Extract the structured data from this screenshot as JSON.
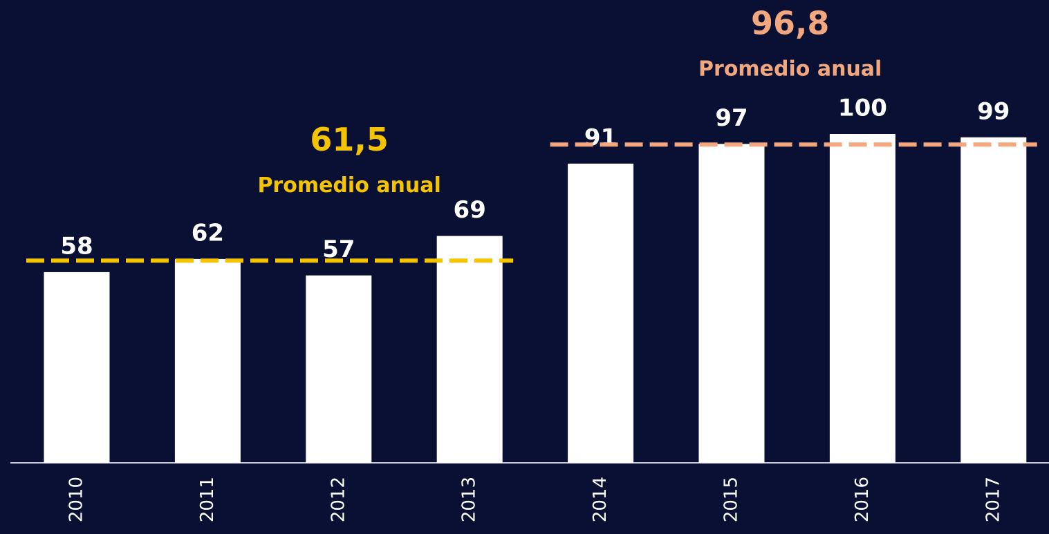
{
  "chart_data": {
    "type": "bar",
    "bar_color": "#ffffff",
    "groups": [
      {
        "categories": [
          "2010",
          "2011",
          "2012",
          "2013"
        ],
        "values": [
          58,
          62,
          57,
          69
        ],
        "average": {
          "value": 61.5,
          "label": "61,5",
          "text": "Promedio anual",
          "color": "#f5c400"
        }
      },
      {
        "categories": [
          "2014",
          "2015",
          "2016",
          "2017"
        ],
        "values": [
          91,
          97,
          100,
          99
        ],
        "average": {
          "value": 96.8,
          "label": "96,8",
          "text": "Promedio anual",
          "color": "#f2a77e"
        }
      }
    ]
  }
}
